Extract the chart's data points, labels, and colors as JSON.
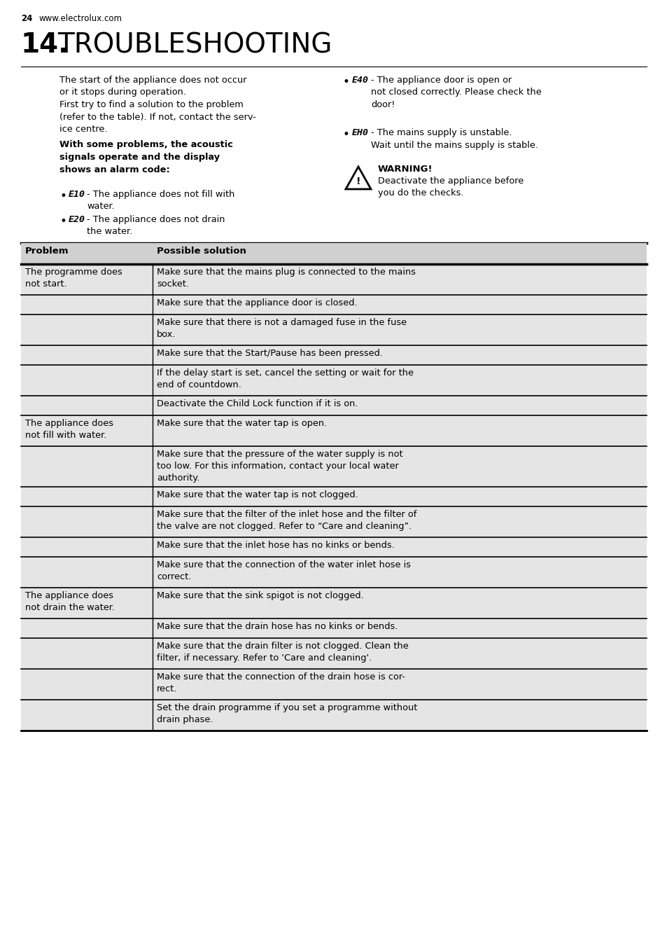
{
  "page_number": "24",
  "website": "www.electrolux.com",
  "section_number": "14.",
  "section_title": "TROUBLESHOOTING",
  "intro_text_left": "The start of the appliance does not occur\nor it stops during operation.\nFirst try to find a solution to the problem\n(refer to the table). If not, contact the serv-\nice centre.",
  "bold_text": "With some problems, the acoustic\nsignals operate and the display\nshows an alarm code:",
  "bullet_codes_left": [
    "E10",
    "E20"
  ],
  "bullet_texts_left": [
    " - The appliance does not fill with\n   water.",
    " - The appliance does not drain\n   the water."
  ],
  "bullet_codes_right": [
    "E40",
    "EH0"
  ],
  "bullet_texts_right": [
    " - The appliance door is open or\n   not closed correctly. Please check the\n   door!",
    " - The mains supply is unstable.\n   Wait until the mains supply is stable."
  ],
  "warning_title": "WARNING!",
  "warning_text": "Deactivate the appliance before\nyou do the checks.",
  "table_header": [
    "Problem",
    "Possible solution"
  ],
  "table_rows": [
    [
      "The programme does\nnot start.",
      "Make sure that the mains plug is connected to the mains\nsocket."
    ],
    [
      "",
      "Make sure that the appliance door is closed."
    ],
    [
      "",
      "Make sure that there is not a damaged fuse in the fuse\nbox."
    ],
    [
      "",
      "Make sure that the Start/Pause has been pressed."
    ],
    [
      "",
      "If the delay start is set, cancel the setting or wait for the\nend of countdown."
    ],
    [
      "",
      "Deactivate the Child Lock function if it is on."
    ],
    [
      "The appliance does\nnot fill with water.",
      "Make sure that the water tap is open."
    ],
    [
      "",
      "Make sure that the pressure of the water supply is not\ntoo low. For this information, contact your local water\nauthority."
    ],
    [
      "",
      "Make sure that the water tap is not clogged."
    ],
    [
      "",
      "Make sure that the filter of the inlet hose and the filter of\nthe valve are not clogged. Refer to “Care and cleaning”."
    ],
    [
      "",
      "Make sure that the inlet hose has no kinks or bends."
    ],
    [
      "",
      "Make sure that the connection of the water inlet hose is\ncorrect."
    ],
    [
      "The appliance does\nnot drain the water.",
      "Make sure that the sink spigot is not clogged."
    ],
    [
      "",
      "Make sure that the drain hose has no kinks or bends."
    ],
    [
      "",
      "Make sure that the drain filter is not clogged. Clean the\nfilter, if necessary. Refer to 'Care and cleaning'."
    ],
    [
      "",
      "Make sure that the connection of the drain hose is cor-\nrect."
    ],
    [
      "",
      "Set the drain programme if you set a programme without\ndrain phase."
    ]
  ],
  "bg_color": "#ffffff",
  "table_bg_color": "#e5e5e5",
  "table_header_bg": "#d0d0d0",
  "table_line_color": "#000000",
  "text_color": "#000000"
}
